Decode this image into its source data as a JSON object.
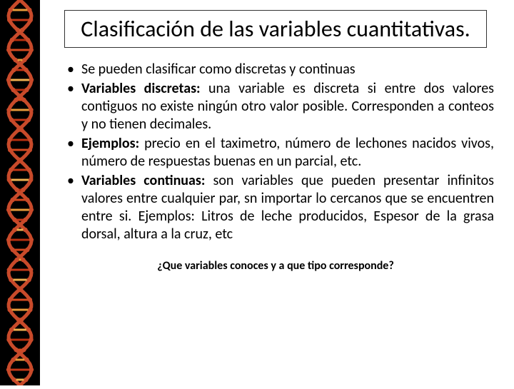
{
  "title": "Clasificación de las variables cuantitativas.",
  "bullets": [
    {
      "bold": "",
      "text": "Se pueden clasificar como discretas y continuas"
    },
    {
      "bold": "Variables discretas:",
      "text": " una variable es discreta si entre dos valores contiguos no existe ningún otro valor posible. Corresponden a conteos y no tienen decimales."
    },
    {
      "bold": "Ejemplos:",
      "text": " precio en el taximetro, número de lechones nacidos vivos, número de respuestas buenas en un parcial, etc."
    },
    {
      "bold": "Variables continuas:",
      "text": " son variables que pueden presentar infinitos valores entre cualquier par, sn importar lo cercanos que se encuentren entre si. Ejemplos: Litros de leche producidos, Espesor de la grasa dorsal, altura a la cruz, etc"
    }
  ],
  "footer": "¿Que variables conoces y a que tipo corresponde?",
  "dna": {
    "strand_color": "#c84a2a",
    "rung_colors": [
      "#d44a20",
      "#e89a3a",
      "#c43818",
      "#f0b050",
      "#b83010"
    ],
    "bg": "#000000"
  }
}
